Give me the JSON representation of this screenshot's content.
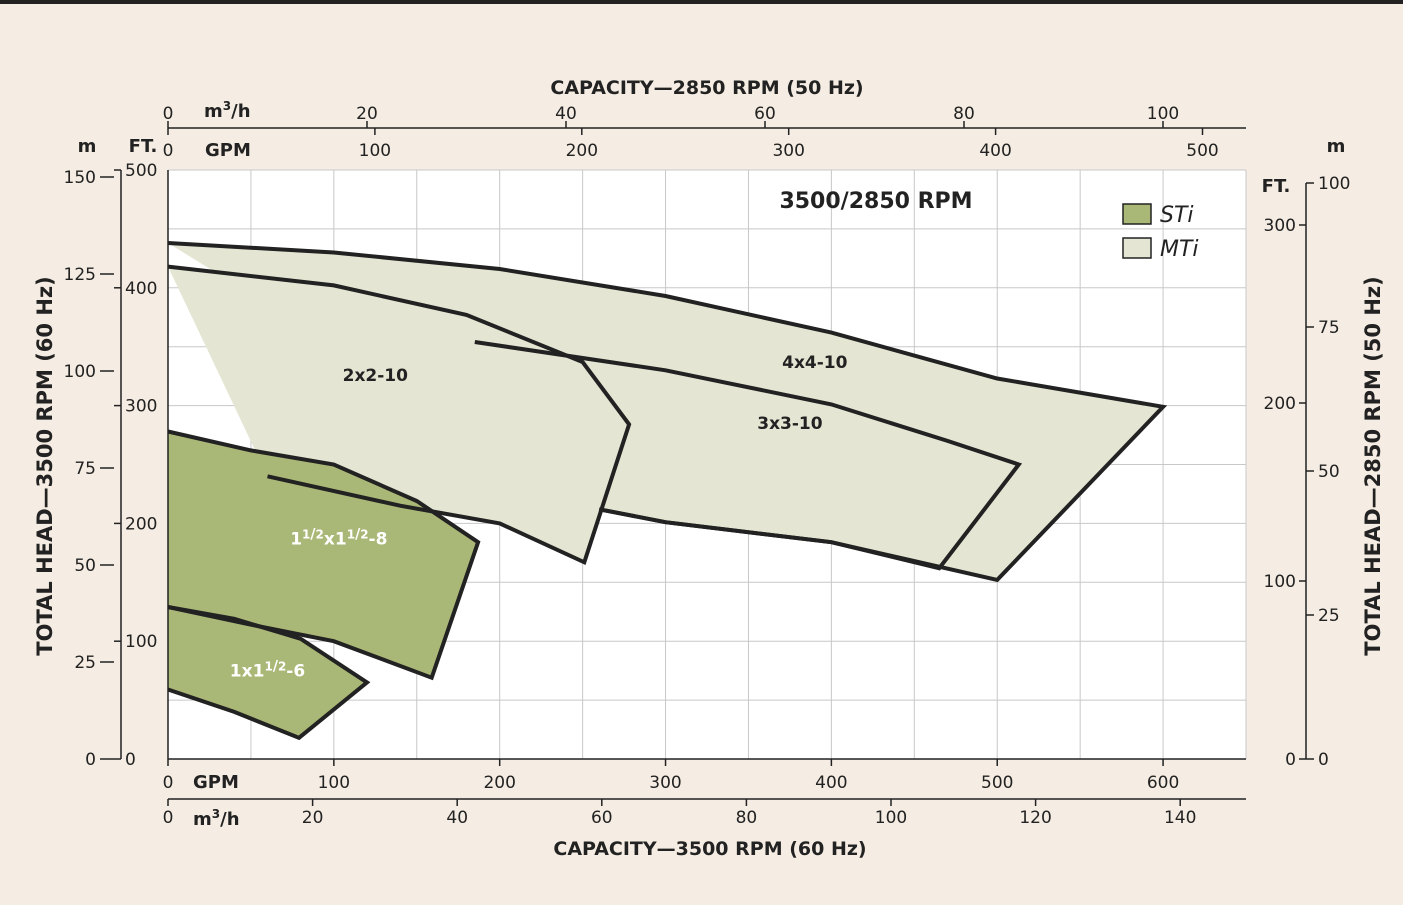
{
  "chart_data": {
    "type": "area",
    "title": "3500/2850 RPM",
    "top_axis": {
      "label": "CAPACITY—2850 RPM (50 Hz)",
      "m3h_unit": "m3/h",
      "m3h_ticks": [
        "0",
        "20",
        "40",
        "60",
        "80",
        "100"
      ],
      "gpm_unit": "GPM",
      "gpm_ticks": [
        "0",
        "100",
        "200",
        "300",
        "400",
        "500"
      ]
    },
    "bottom_axis": {
      "label": "CAPACITY—3500 RPM (60 Hz)",
      "gpm_unit": "GPM",
      "gpm_ticks": [
        "0",
        "100",
        "200",
        "300",
        "400",
        "500",
        "600"
      ],
      "m3h_unit": "m3/h",
      "m3h_ticks": [
        "0",
        "20",
        "40",
        "60",
        "80",
        "100",
        "120",
        "140"
      ],
      "xlim_gpm": [
        0,
        650
      ]
    },
    "left_axis": {
      "label": "TOTAL HEAD—3500 RPM (60 Hz)",
      "m_unit": "m",
      "m_ticks": [
        "0",
        "25",
        "50",
        "75",
        "100",
        "125",
        "150"
      ],
      "ft_unit": "FT.",
      "ft_ticks": [
        "0",
        "100",
        "200",
        "300",
        "400",
        "500"
      ],
      "ylim_ft": [
        0,
        500
      ]
    },
    "right_axis": {
      "label": "TOTAL HEAD—2850 RPM (50 Hz)",
      "ft_unit": "FT.",
      "ft_ticks": [
        "0",
        "100",
        "200",
        "300"
      ],
      "m_unit": "m",
      "m_ticks": [
        "0",
        "25",
        "50",
        "75",
        "100"
      ]
    },
    "grid": true,
    "legend": {
      "placement": "top-right",
      "items": [
        {
          "label": "STi",
          "color": "#aab877"
        },
        {
          "label": "MTi",
          "color": "#e4e5d2"
        }
      ]
    },
    "series": [
      {
        "label": "4x4-10",
        "family": "MTi",
        "upper": [
          [
            0,
            438
          ],
          [
            100,
            430
          ],
          [
            200,
            416
          ],
          [
            300,
            393
          ],
          [
            400,
            362
          ],
          [
            500,
            323
          ],
          [
            600,
            299
          ]
        ],
        "lower": [
          [
            600,
            299
          ],
          [
            500,
            152
          ]
        ],
        "inner_curve": [
          [
            500,
            152
          ],
          [
            400,
            184
          ],
          [
            300,
            201
          ],
          [
            260,
            212
          ]
        ]
      },
      {
        "label": "3x3-10",
        "family": "MTi",
        "upper": [
          [
            185,
            354
          ],
          [
            300,
            330
          ],
          [
            400,
            301
          ],
          [
            470,
            270
          ],
          [
            513,
            250
          ]
        ],
        "lower": [
          [
            513,
            250
          ],
          [
            465,
            162
          ]
        ],
        "inner_curve": [
          [
            465,
            162
          ],
          [
            400,
            184
          ],
          [
            300,
            201
          ],
          [
            260,
            212
          ]
        ]
      },
      {
        "label": "2x2-10",
        "family": "MTi",
        "upper": [
          [
            0,
            418
          ],
          [
            100,
            402
          ],
          [
            180,
            377
          ],
          [
            250,
            337
          ],
          [
            278,
            284
          ]
        ],
        "lower": [
          [
            278,
            284
          ],
          [
            251,
            167
          ]
        ],
        "inner_curve": [
          [
            251,
            167
          ],
          [
            200,
            200
          ],
          [
            140,
            215
          ],
          [
            60,
            240
          ]
        ]
      },
      {
        "label": "11/2x11/2-8",
        "label_parts": [
          "1",
          "1",
          "/",
          "2",
          "x",
          "1",
          "1",
          "/",
          "2",
          "-8"
        ],
        "family": "STi",
        "upper": [
          [
            0,
            278
          ],
          [
            50,
            262
          ],
          [
            100,
            250
          ],
          [
            150,
            219
          ],
          [
            187,
            184
          ]
        ],
        "lower": [
          [
            187,
            184
          ],
          [
            159,
            69
          ]
        ],
        "inner_curve": [
          [
            159,
            69
          ],
          [
            100,
            100
          ],
          [
            50,
            114
          ],
          [
            0,
            129
          ]
        ]
      },
      {
        "label": "1x11/2-6",
        "label_parts": [
          "1",
          "x",
          "1",
          "1",
          "/",
          "2",
          "-6"
        ],
        "family": "STi",
        "upper": [
          [
            0,
            129
          ],
          [
            40,
            119
          ],
          [
            80,
            102
          ],
          [
            120,
            65
          ]
        ],
        "lower": [
          [
            120,
            65
          ],
          [
            79,
            18
          ]
        ],
        "inner_curve": [
          [
            79,
            18
          ],
          [
            40,
            40
          ],
          [
            0,
            59
          ]
        ]
      }
    ]
  }
}
